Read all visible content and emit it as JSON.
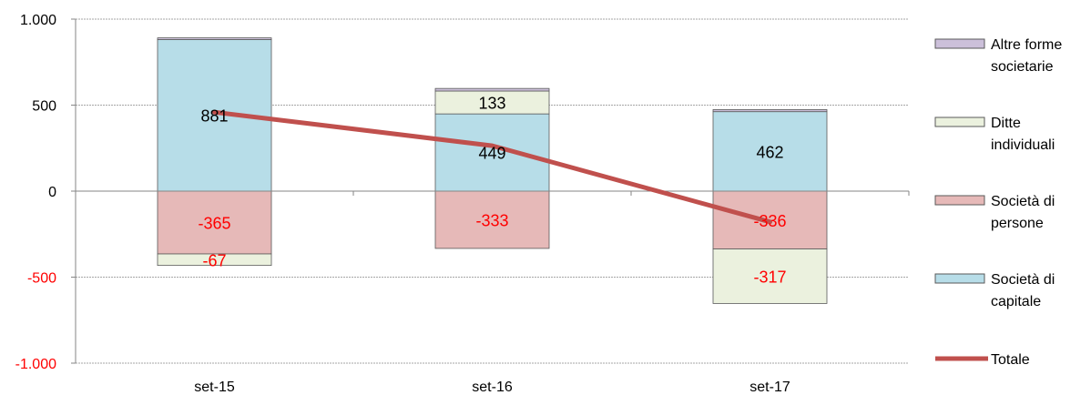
{
  "chart_data": {
    "type": "bar",
    "stacked": true,
    "categories": [
      "set-15",
      "set-16",
      "set-17"
    ],
    "ylim": [
      -1000,
      1000
    ],
    "yticks": [
      1000,
      500,
      0,
      -500,
      -1000
    ],
    "ytick_labels": [
      "1.000",
      "500",
      "0",
      "-500",
      "-1.000"
    ],
    "grid": true,
    "legend_position": "right",
    "series": [
      {
        "name": "Società di capitale",
        "values": [
          881,
          449,
          462
        ],
        "labels": [
          "881",
          "449",
          "462"
        ],
        "color": "#b7dde8"
      },
      {
        "name": "Società di persone",
        "values": [
          -365,
          -333,
          -336
        ],
        "labels": [
          "-365",
          "-333",
          "-336"
        ],
        "color": "#e6b9b8"
      },
      {
        "name": "Ditte individuali",
        "values": [
          -67,
          133,
          -317
        ],
        "labels": [
          "-67",
          "133",
          "-317"
        ],
        "color": "#ebf1de"
      },
      {
        "name": "Altre forme societarie",
        "values": [
          10,
          15,
          12
        ],
        "labels": [
          "",
          "",
          ""
        ],
        "color": "#ccc0da"
      }
    ],
    "line": {
      "name": "Totale",
      "values": [
        459,
        264,
        -179
      ],
      "color": "#c0504d"
    },
    "legend": [
      {
        "label": "Altre forme",
        "label2": "societarie",
        "color": "#ccc0da",
        "kind": "box"
      },
      {
        "label": "Ditte",
        "label2": "individuali",
        "color": "#ebf1de",
        "kind": "box"
      },
      {
        "label": "Società di",
        "label2": "persone",
        "color": "#e6b9b8",
        "kind": "box"
      },
      {
        "label": "Società di",
        "label2": "capitale",
        "color": "#b7dde8",
        "kind": "box"
      },
      {
        "label": "Totale",
        "label2": "",
        "color": "#c0504d",
        "kind": "line"
      }
    ],
    "negative_label_color": "#ff0000",
    "positive_label_color": "#000000"
  }
}
